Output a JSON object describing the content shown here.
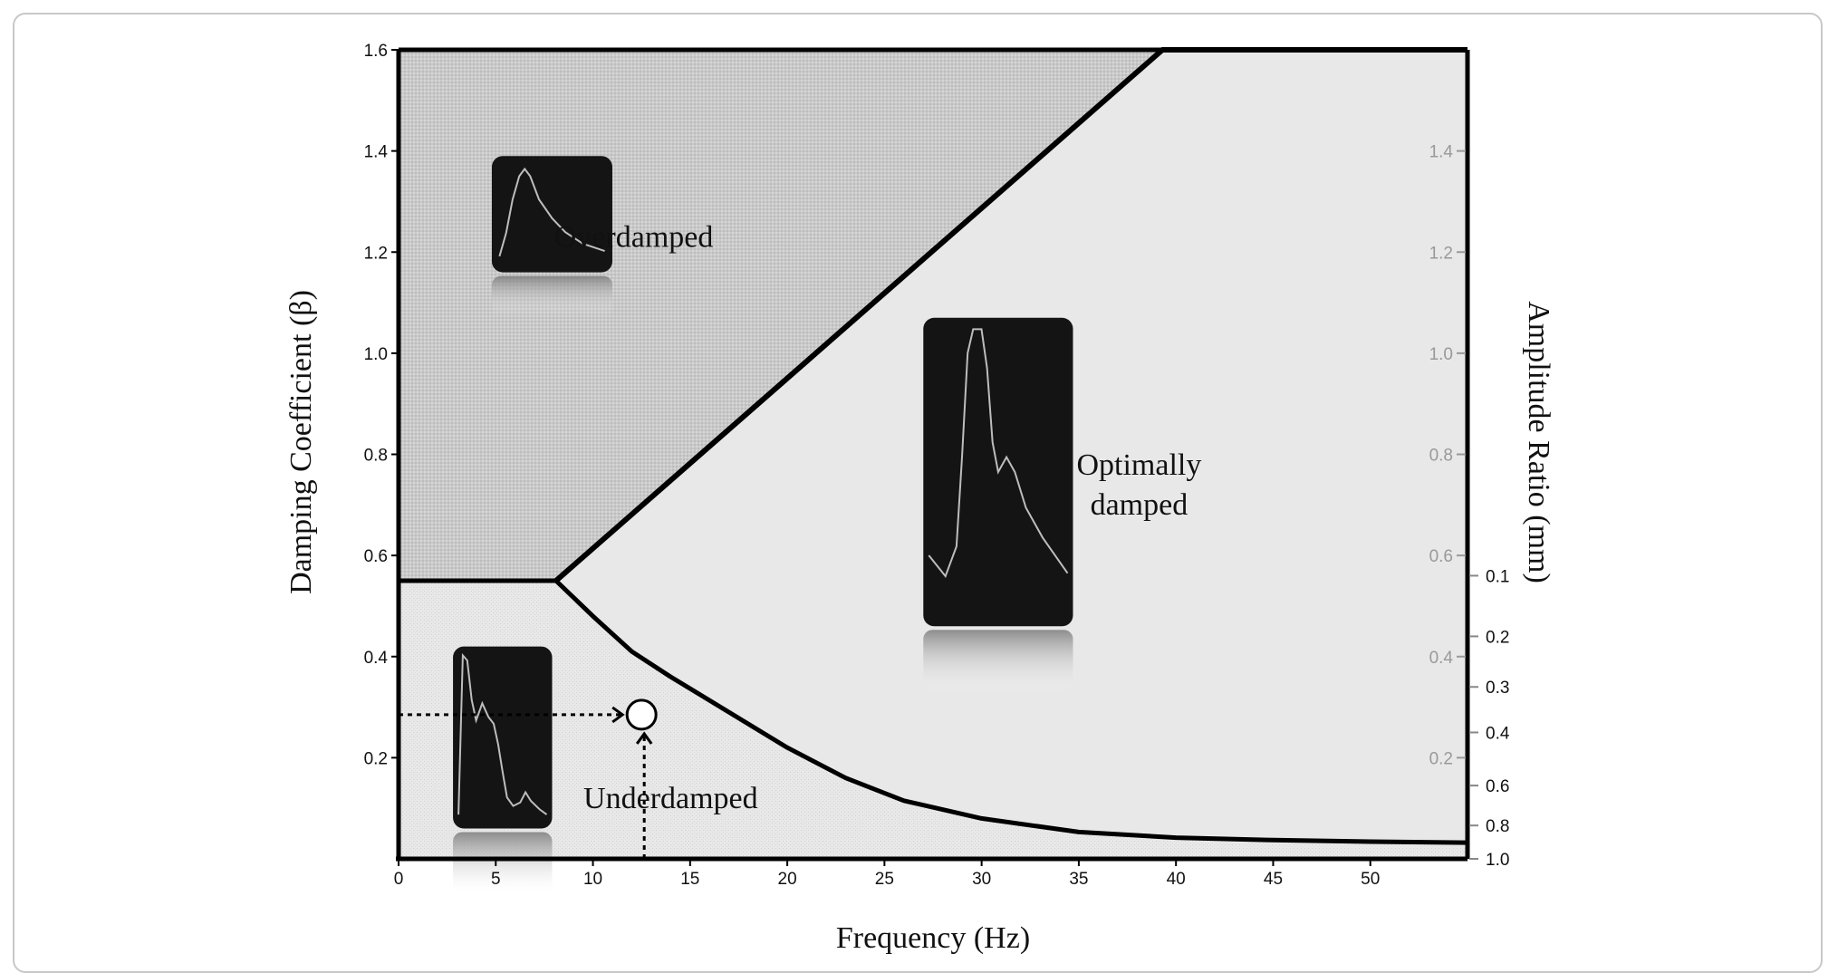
{
  "chart_data": {
    "type": "area",
    "xlabel": "Frequency (Hz)",
    "ylabel": "Damping Coefficient  (β)",
    "y2label": "Amplitude Ratio (mm)",
    "xlim": [
      0,
      55
    ],
    "ylim": [
      0,
      1.6
    ],
    "x_ticks": [
      0,
      5,
      10,
      15,
      20,
      25,
      30,
      35,
      40,
      45,
      50
    ],
    "y_ticks": [
      0.2,
      0.4,
      0.6,
      0.8,
      1.0,
      1.2,
      1.4,
      1.6
    ],
    "y_tick_labels": [
      "0.2",
      "0.4",
      "0.6",
      "0.8",
      "1.0",
      "1.2",
      "1.4",
      "1.6"
    ],
    "right_ticks": [
      0.2,
      0.4,
      0.6,
      0.8,
      1.0,
      1.2,
      1.4
    ],
    "right_tick_labels": [
      "0.2",
      "0.4",
      "0.6",
      "0.8",
      "1.0",
      "1.2",
      "1.4"
    ],
    "amplitude_ticks": [
      {
        "label": "0.1",
        "y": 0.56
      },
      {
        "label": "0.2",
        "y": 0.44
      },
      {
        "label": "0.3",
        "y": 0.34
      },
      {
        "label": "0.4",
        "y": 0.25
      },
      {
        "label": "0.6",
        "y": 0.145
      },
      {
        "label": "0.8",
        "y": 0.066
      },
      {
        "label": "1.0",
        "y": 0.0
      }
    ],
    "regions": [
      {
        "name": "Overdamped",
        "label_lines": [
          "Overdamped"
        ],
        "label_at": {
          "x": 12.1,
          "y": 1.21
        },
        "color": "#cccccc"
      },
      {
        "name": "Optimally damped",
        "label_lines": [
          "Optimally",
          "damped"
        ],
        "label_at": {
          "x": 38.1,
          "y": 0.76
        },
        "color": "#e8e8e8"
      },
      {
        "name": "Underdamped",
        "label_lines": [
          "Underdamped"
        ],
        "label_at": {
          "x": 14,
          "y": 0.1
        },
        "color": "#e6e6e6"
      }
    ],
    "boundary_upper": {
      "x": [
        8.1,
        39.3,
        55
      ],
      "y": [
        0.55,
        1.6,
        1.6
      ]
    },
    "boundary_plateau": {
      "x": [
        0,
        8.1
      ],
      "y": [
        0.55,
        0.55
      ]
    },
    "boundary_lower": {
      "x": [
        8.1,
        10,
        12,
        14,
        17,
        20,
        23,
        26,
        30,
        35,
        40,
        45,
        50,
        55
      ],
      "y": [
        0.55,
        0.48,
        0.41,
        0.36,
        0.29,
        0.22,
        0.16,
        0.115,
        0.08,
        0.053,
        0.042,
        0.037,
        0.034,
        0.032
      ]
    },
    "marker": {
      "x": 12.5,
      "y": 0.285
    },
    "insets": [
      {
        "region": "Overdamped",
        "x0": 4.8,
        "x1": 11,
        "y0": 1.16,
        "y1": 1.39,
        "trace": [
          [
            0.02,
            0.1
          ],
          [
            0.08,
            0.32
          ],
          [
            0.14,
            0.64
          ],
          [
            0.2,
            0.86
          ],
          [
            0.25,
            0.93
          ],
          [
            0.3,
            0.86
          ],
          [
            0.38,
            0.64
          ],
          [
            0.5,
            0.46
          ],
          [
            0.62,
            0.33
          ],
          [
            0.78,
            0.22
          ],
          [
            0.98,
            0.15
          ]
        ]
      },
      {
        "region": "Optimally damped",
        "x0": 27,
        "x1": 34.7,
        "y0": 0.46,
        "y1": 1.07,
        "trace": [
          [
            0.0,
            0.22
          ],
          [
            0.12,
            0.15
          ],
          [
            0.2,
            0.25
          ],
          [
            0.24,
            0.55
          ],
          [
            0.28,
            0.9
          ],
          [
            0.32,
            0.98
          ],
          [
            0.38,
            0.98
          ],
          [
            0.42,
            0.85
          ],
          [
            0.46,
            0.6
          ],
          [
            0.5,
            0.5
          ],
          [
            0.56,
            0.55
          ],
          [
            0.62,
            0.5
          ],
          [
            0.7,
            0.38
          ],
          [
            0.82,
            0.28
          ],
          [
            1.0,
            0.16
          ]
        ]
      },
      {
        "region": "Underdamped",
        "x0": 2.8,
        "x1": 7.9,
        "y0": 0.06,
        "y1": 0.42,
        "trace": [
          [
            0.0,
            0.05
          ],
          [
            0.05,
            0.98
          ],
          [
            0.1,
            0.95
          ],
          [
            0.15,
            0.72
          ],
          [
            0.2,
            0.6
          ],
          [
            0.27,
            0.7
          ],
          [
            0.34,
            0.62
          ],
          [
            0.4,
            0.58
          ],
          [
            0.45,
            0.46
          ],
          [
            0.5,
            0.3
          ],
          [
            0.55,
            0.15
          ],
          [
            0.62,
            0.1
          ],
          [
            0.7,
            0.12
          ],
          [
            0.76,
            0.18
          ],
          [
            0.82,
            0.13
          ],
          [
            0.92,
            0.08
          ],
          [
            1.0,
            0.05
          ]
        ]
      }
    ],
    "grid": false,
    "legend": "none"
  }
}
